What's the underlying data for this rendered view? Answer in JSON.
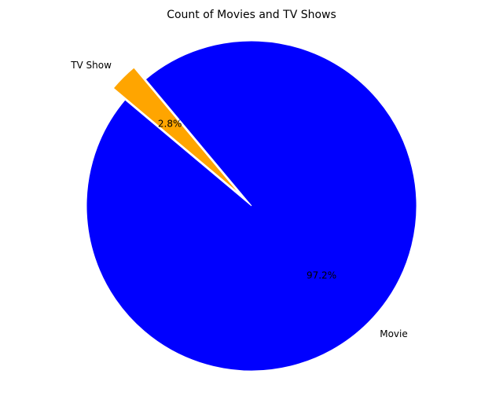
{
  "chart_data": {
    "type": "pie",
    "title": "Count of Movies and TV Shows",
    "labels": [
      "Movie",
      "TV Show"
    ],
    "values": [
      97.2,
      2.8
    ],
    "percent_labels": [
      "97.2%",
      "2.8%"
    ],
    "colors": [
      "#0000ff",
      "#ffa500"
    ],
    "exploded": [
      false,
      true
    ],
    "start_angle_deg": 140,
    "legend": "none"
  }
}
